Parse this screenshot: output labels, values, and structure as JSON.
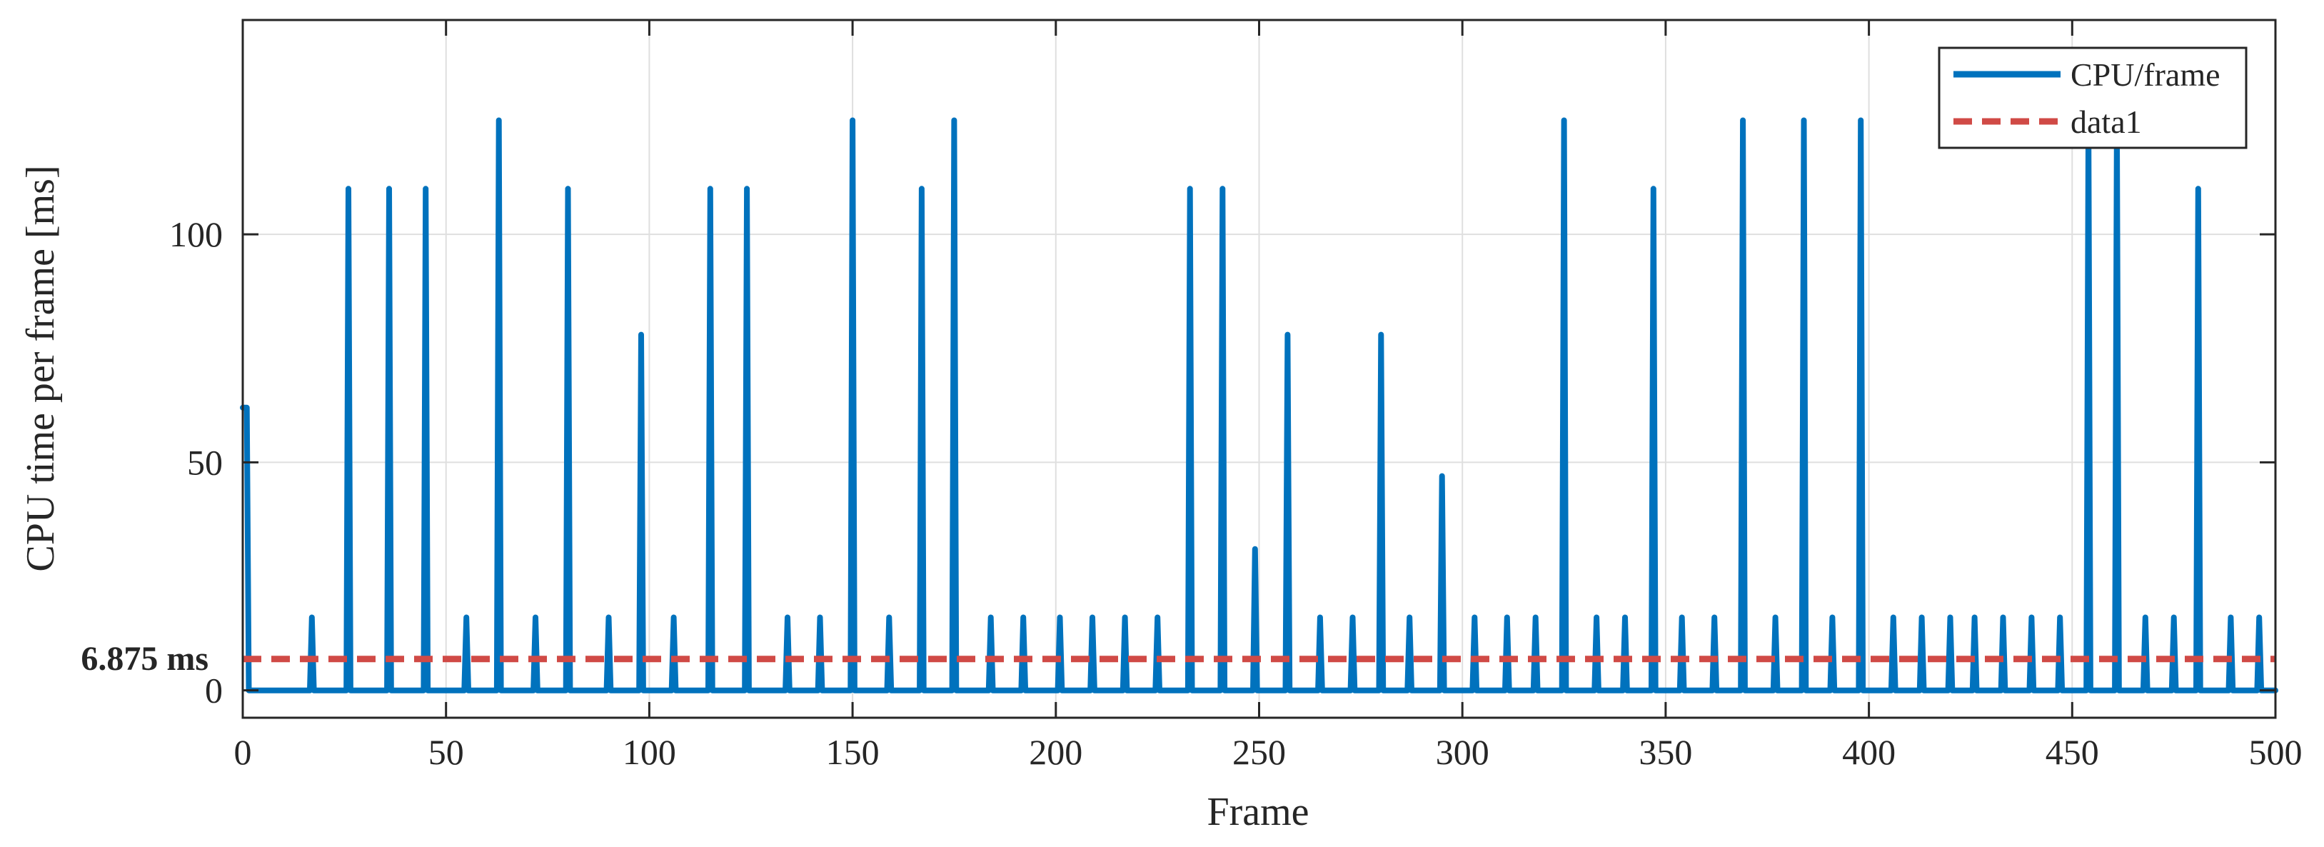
{
  "chart_data": {
    "type": "line",
    "title": "",
    "xlabel": "Frame",
    "ylabel": "CPU time per frame [ms]",
    "xlim": [
      0,
      500
    ],
    "ylim": [
      -6,
      147
    ],
    "xticks": [
      0,
      50,
      100,
      150,
      200,
      250,
      300,
      350,
      400,
      450,
      500
    ],
    "yticks": [
      0,
      50,
      100
    ],
    "grid": true,
    "legend_position": "top-right",
    "colors": {
      "cpu": "#0072BD",
      "ref": "#D04A46",
      "grid": "#DFDFDF",
      "axis": "#262626"
    },
    "reference_label": "6.875 ms",
    "series": [
      {
        "name": "CPU/frame",
        "style": "solid",
        "base": 0,
        "spikes": [
          [
            0,
            62
          ],
          [
            1,
            62
          ],
          [
            17,
            16
          ],
          [
            26,
            110
          ],
          [
            36,
            110
          ],
          [
            45,
            110
          ],
          [
            55,
            16
          ],
          [
            63,
            125
          ],
          [
            72,
            16
          ],
          [
            80,
            110
          ],
          [
            90,
            16
          ],
          [
            98,
            78
          ],
          [
            106,
            16
          ],
          [
            115,
            110
          ],
          [
            124,
            110
          ],
          [
            134,
            16
          ],
          [
            142,
            16
          ],
          [
            150,
            125
          ],
          [
            159,
            16
          ],
          [
            167,
            110
          ],
          [
            175,
            125
          ],
          [
            184,
            16
          ],
          [
            192,
            16
          ],
          [
            201,
            16
          ],
          [
            209,
            16
          ],
          [
            217,
            16
          ],
          [
            225,
            16
          ],
          [
            233,
            110
          ],
          [
            241,
            110
          ],
          [
            249,
            31
          ],
          [
            257,
            78
          ],
          [
            265,
            16
          ],
          [
            273,
            16
          ],
          [
            280,
            78
          ],
          [
            287,
            16
          ],
          [
            295,
            47
          ],
          [
            303,
            16
          ],
          [
            311,
            16
          ],
          [
            318,
            16
          ],
          [
            325,
            125
          ],
          [
            333,
            16
          ],
          [
            340,
            16
          ],
          [
            347,
            110
          ],
          [
            354,
            16
          ],
          [
            362,
            16
          ],
          [
            369,
            125
          ],
          [
            377,
            16
          ],
          [
            384,
            125
          ],
          [
            391,
            16
          ],
          [
            398,
            125
          ],
          [
            406,
            16
          ],
          [
            413,
            16
          ],
          [
            420,
            16
          ],
          [
            426,
            16
          ],
          [
            433,
            16
          ],
          [
            440,
            16
          ],
          [
            447,
            16
          ],
          [
            454,
            125
          ],
          [
            461,
            125
          ],
          [
            468,
            16
          ],
          [
            475,
            16
          ],
          [
            481,
            110
          ],
          [
            489,
            16
          ],
          [
            496,
            16
          ]
        ]
      },
      {
        "name": "data1",
        "style": "dashed",
        "constant": 6.875
      }
    ]
  }
}
